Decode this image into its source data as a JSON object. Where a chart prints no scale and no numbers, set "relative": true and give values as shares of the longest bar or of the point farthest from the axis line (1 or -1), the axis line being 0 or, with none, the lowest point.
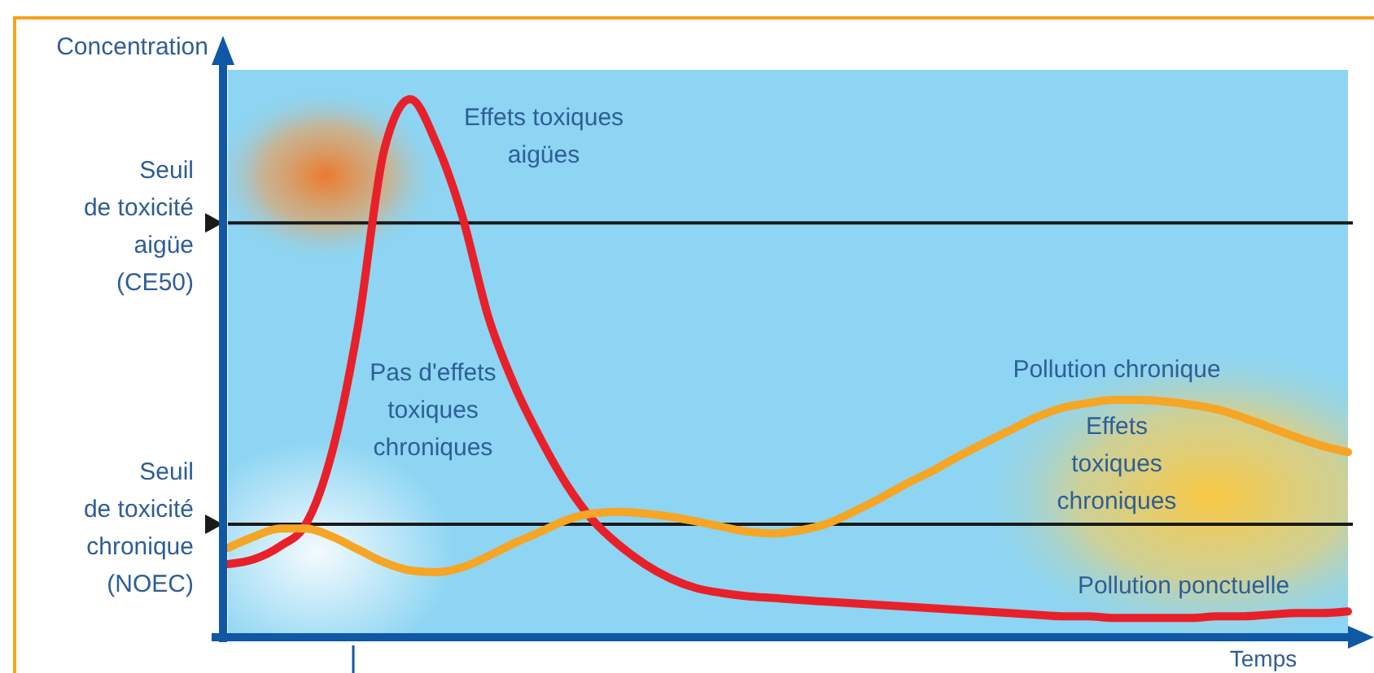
{
  "chart_data": {
    "type": "line",
    "relative": true,
    "ylabel": "Concentration",
    "xlabel": "Temps",
    "categories": [
      null,
      null,
      null,
      null,
      null,
      null,
      null,
      null,
      null,
      null,
      null,
      null,
      null,
      null,
      null,
      null,
      null,
      null,
      null,
      null,
      null,
      null,
      null,
      null,
      null,
      null,
      null,
      null,
      null,
      null,
      null,
      null,
      null,
      null,
      null,
      null,
      null,
      null,
      null,
      null,
      null,
      null,
      null,
      null
    ],
    "series": [
      {
        "name": "Pollution ponctuelle",
        "color": "#e8202a",
        "values": [
          0.136,
          0.145,
          0.169,
          0.211,
          0.344,
          0.58,
          0.906,
          1,
          0.918,
          0.782,
          0.595,
          0.468,
          0.369,
          0.284,
          0.218,
          0.172,
          0.136,
          0.109,
          0.091,
          0.082,
          0.076,
          0.073,
          0.069,
          0.066,
          0.063,
          0.06,
          0.057,
          0.054,
          0.051,
          0.048,
          0.045,
          0.042,
          0.039,
          0.039,
          0.036,
          0.036,
          0.036,
          0.036,
          0.039,
          0.039,
          0.042,
          0.045,
          0.045,
          0.048
        ]
      },
      {
        "name": "Pollution chronique",
        "color": "#f6a524",
        "values": [
          0.166,
          0.187,
          0.202,
          0.202,
          0.187,
          0.163,
          0.139,
          0.124,
          0.121,
          0.13,
          0.151,
          0.175,
          0.196,
          0.218,
          0.23,
          0.233,
          0.23,
          0.224,
          0.215,
          0.205,
          0.196,
          0.193,
          0.199,
          0.211,
          0.233,
          0.257,
          0.284,
          0.308,
          0.335,
          0.36,
          0.384,
          0.408,
          0.426,
          0.435,
          0.441,
          0.441,
          0.438,
          0.432,
          0.423,
          0.408,
          0.39,
          0.372,
          0.356,
          0.344
        ]
      }
    ],
    "ref_lines": [
      {
        "axis": "y",
        "value": 0.77,
        "label": "Seuil\nde toxicité\naigüe\n(CE50)",
        "color": "#1a1a1a"
      },
      {
        "axis": "y",
        "value": 0.21,
        "label": "Seuil\nde toxicité\nchronique\n(NOEC)",
        "color": "#1a1a1a"
      }
    ],
    "annotations": [
      "Effets toxiques\naigües",
      "Pas d'effets\ntoxiques\nchroniques",
      "Effets\ntoxiques\nchroniques"
    ]
  }
}
